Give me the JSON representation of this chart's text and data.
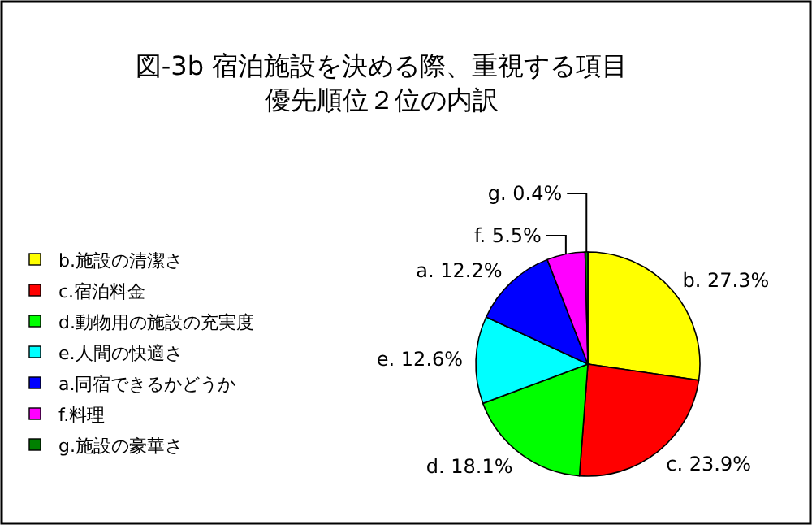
{
  "chart_data": {
    "type": "pie",
    "title": "図-3b 宿泊施設を決める際、重視する項目",
    "subtitle": "優先順位２位の内訳",
    "categories": [
      "b.施設の清潔さ",
      "c.宿泊料金",
      "d.動物用の施設の充実度",
      "e.人間の快適さ",
      "a.同宿できるかどうか",
      "f.料理",
      "g.施設の豪華さ"
    ],
    "values": [
      27.3,
      23.9,
      18.1,
      12.6,
      12.2,
      5.5,
      0.4
    ],
    "value_labels": [
      "b. 27.3%",
      "c. 23.9%",
      "d. 18.1%",
      "e. 12.6%",
      "a. 12.2%",
      "f. 5.5%",
      "g. 0.4%"
    ],
    "colors": [
      "#ffff00",
      "#ff0000",
      "#00ff00",
      "#00ffff",
      "#0000ff",
      "#ff00ff",
      "#008000"
    ],
    "legend": "left"
  }
}
